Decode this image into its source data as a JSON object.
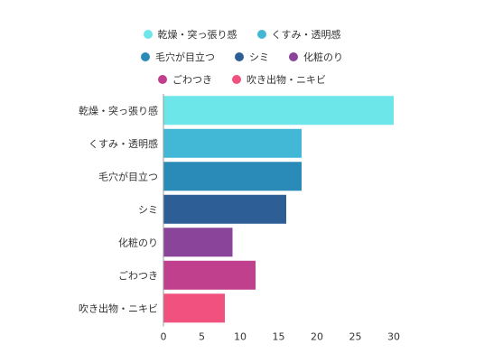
{
  "chart_data": {
    "type": "bar",
    "orientation": "horizontal",
    "categories": [
      "乾燥・突っ張り感",
      "くすみ・透明感",
      "毛穴が目立つ",
      "シミ",
      "化粧のり",
      "ごわつき",
      "吹き出物・ニキビ"
    ],
    "values": [
      30,
      18,
      18,
      16,
      9,
      12,
      8
    ],
    "colors": [
      "#6ce6e8",
      "#42b8d6",
      "#2b8bb8",
      "#2e5e96",
      "#8a449a",
      "#c0408e",
      "#f0517f"
    ],
    "xlim": [
      0,
      30
    ],
    "xticks": [
      0,
      5,
      10,
      15,
      20,
      25,
      30
    ],
    "grid": false,
    "legend_position": "top",
    "legend_rows": [
      [
        0,
        1
      ],
      [
        2,
        3,
        4
      ],
      [
        5,
        6
      ]
    ]
  }
}
